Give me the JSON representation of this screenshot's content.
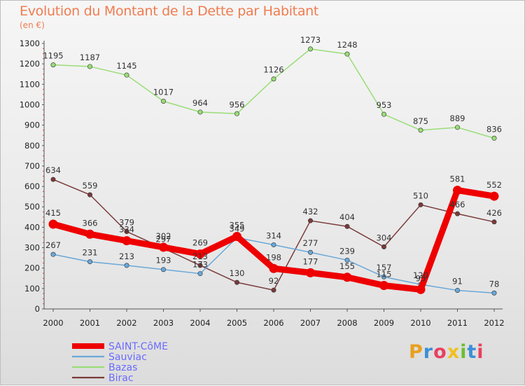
{
  "title": "Evolution du Montant de la Dette par Habitant",
  "unit_label": "(en €)",
  "logo": {
    "text": "Proxiti",
    "colors": [
      "#e8a020",
      "#3a8fd8",
      "#e84060",
      "#f0c020",
      "#6ac030",
      "#3a8fd8",
      "#e84060"
    ]
  },
  "chart_data": {
    "type": "line",
    "title": "Evolution du Montant de la Dette par Habitant",
    "ylabel": "(en €)",
    "xlabel": "",
    "x": [
      "2000",
      "2001",
      "2002",
      "2003",
      "2004",
      "2005",
      "2006",
      "2007",
      "2008",
      "2009",
      "2010",
      "2011",
      "2012"
    ],
    "ylim": [
      0,
      1300
    ],
    "yticks": [
      0,
      100,
      200,
      300,
      400,
      500,
      600,
      700,
      800,
      900,
      1000,
      1100,
      1200,
      1300
    ],
    "grid": false,
    "legend_position": "bottom-left",
    "series": [
      {
        "name": "SAINT-CôME",
        "color": "#ee0000",
        "values": [
          415,
          366,
          334,
          302,
          269,
          355,
          198,
          177,
          155,
          115,
          95,
          581,
          552
        ],
        "labels": [
          "415",
          "366",
          "334",
          "302",
          "269",
          "355",
          "198",
          "177",
          "155",
          "115",
          "95",
          "581",
          "552"
        ]
      },
      {
        "name": "Sauviac",
        "color": "#6aa8d8",
        "values": [
          267,
          231,
          213,
          193,
          173,
          349,
          314,
          277,
          239,
          157,
          120,
          91,
          78
        ],
        "labels": [
          "267",
          "231",
          "213",
          "193",
          "173",
          "349",
          "314",
          "277",
          "239",
          "157",
          "120",
          "91",
          "78"
        ]
      },
      {
        "name": "Bazas",
        "color": "#99dd77",
        "values": [
          1195,
          1187,
          1145,
          1017,
          964,
          956,
          1126,
          1273,
          1248,
          953,
          875,
          889,
          836
        ],
        "labels": [
          "1195",
          "1187",
          "1145",
          "1017",
          "964",
          "956",
          "1126",
          "1273",
          "1248",
          "953",
          "875",
          "889",
          "836"
        ]
      },
      {
        "name": "Birac",
        "color": "#7a3a3a",
        "values": [
          634,
          559,
          379,
          297,
          213,
          130,
          92,
          432,
          404,
          304,
          510,
          466,
          426
        ],
        "labels": [
          "634",
          "559",
          "379",
          "297",
          "213",
          "130",
          "92",
          "432",
          "404",
          "304",
          "510",
          "466",
          "426"
        ]
      }
    ]
  }
}
